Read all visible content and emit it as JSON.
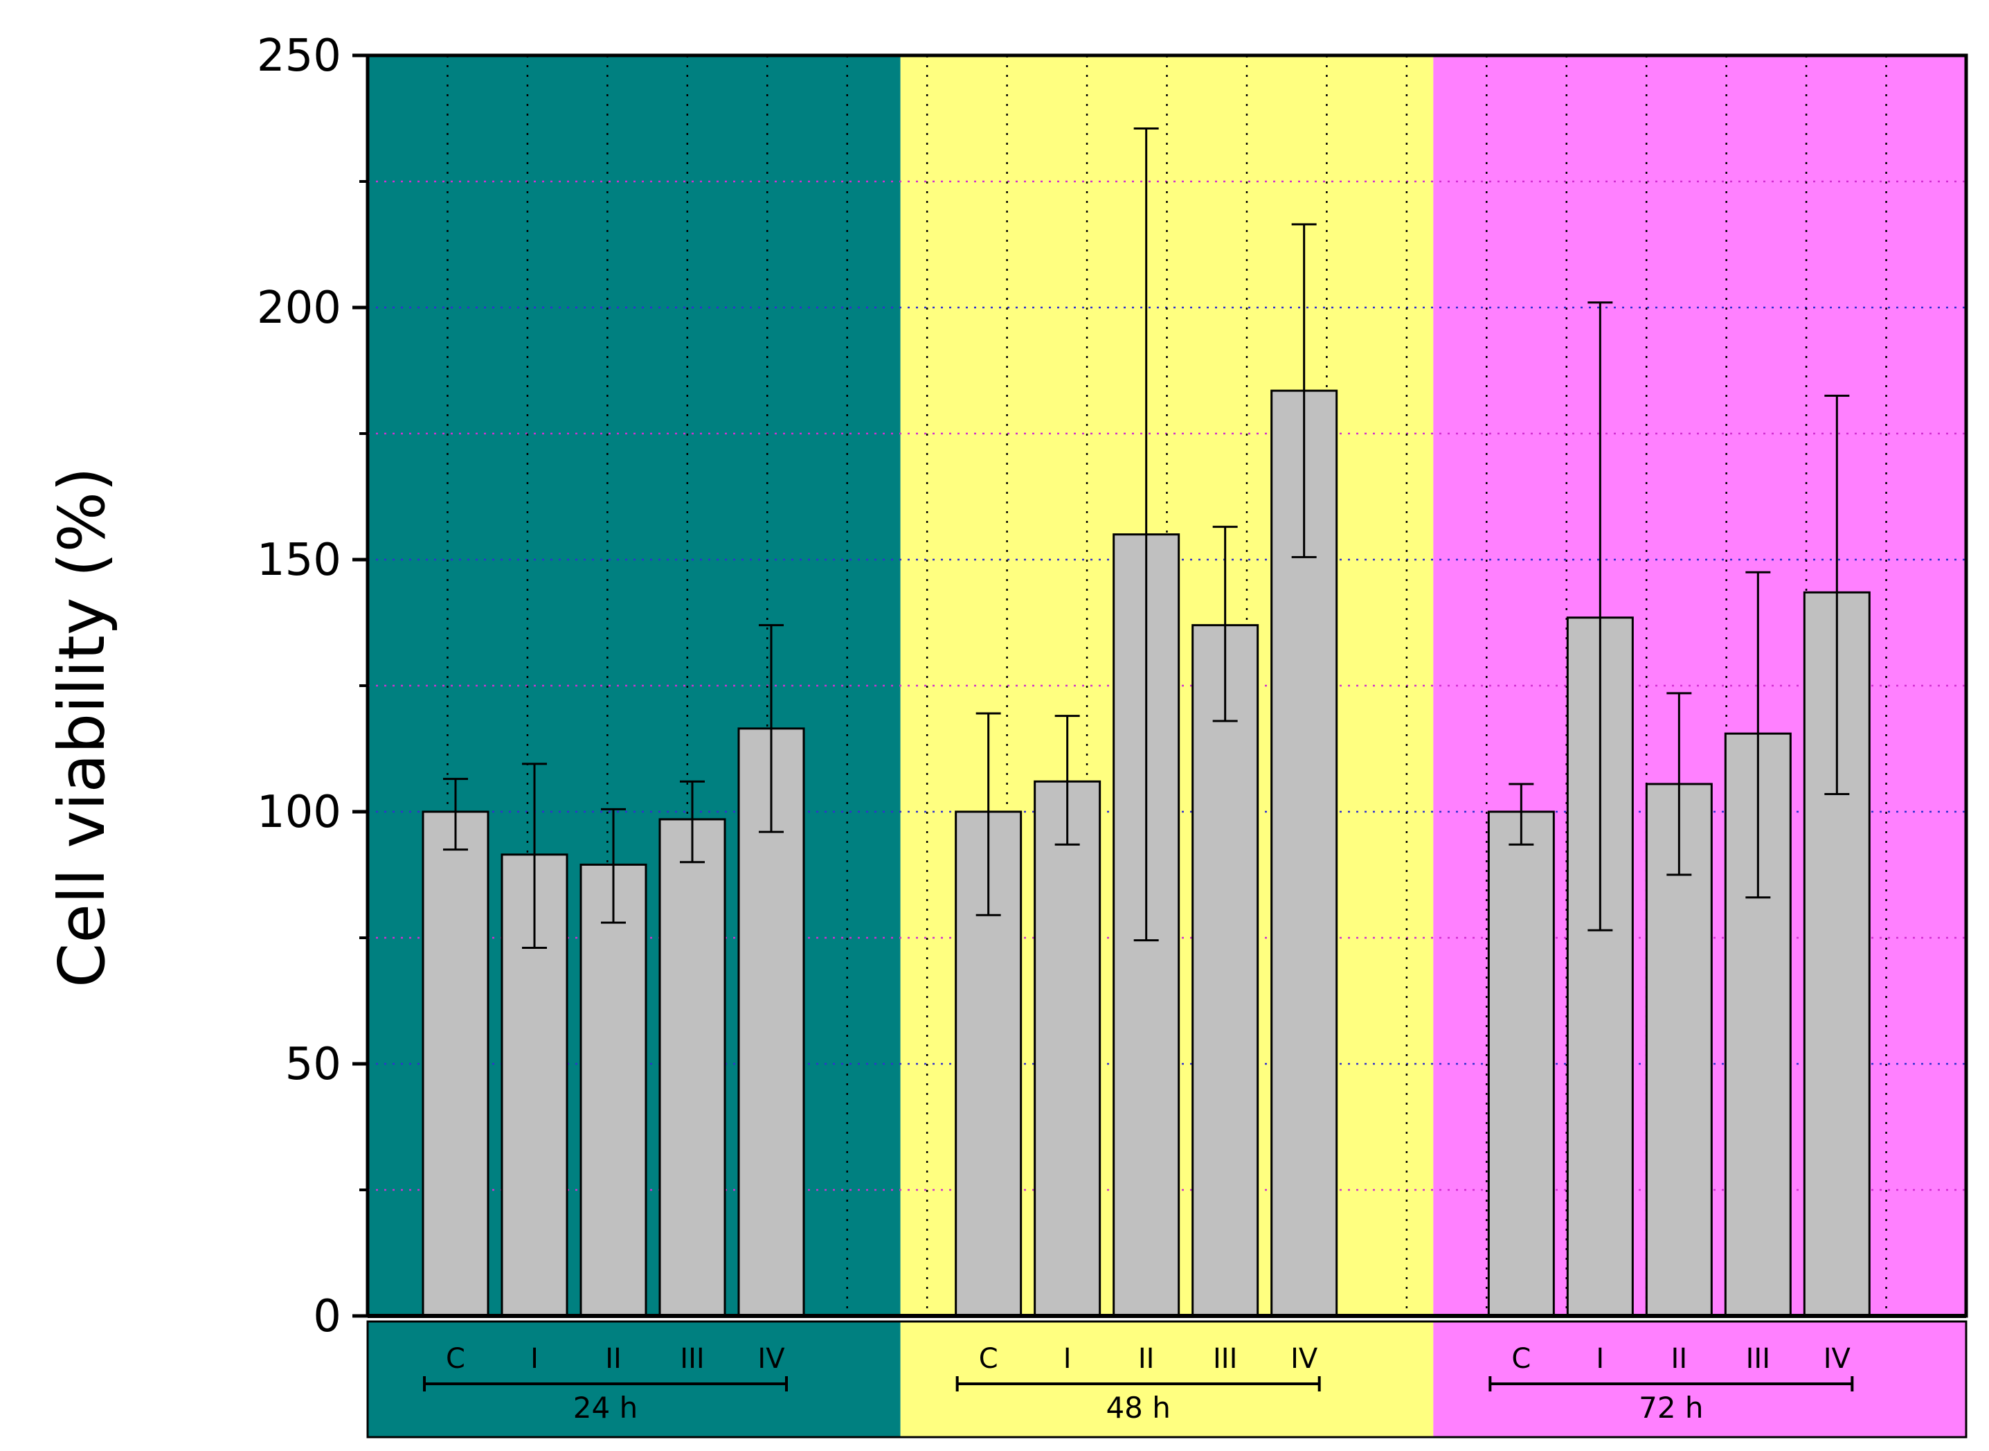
{
  "chart_data": {
    "type": "bar",
    "title": "",
    "xlabel": "",
    "ylabel": "Cell viability (%)",
    "ylim": [
      0,
      250
    ],
    "yticks": [
      0,
      50,
      100,
      150,
      200,
      250
    ],
    "grid": true,
    "groups": [
      {
        "name": "24 h",
        "background": "#008080",
        "categories": [
          "C",
          "I",
          "II",
          "III",
          "IV"
        ],
        "values": [
          100,
          91.5,
          89.5,
          98.5,
          116.5
        ],
        "error_low": [
          92.5,
          73,
          78,
          90,
          96
        ],
        "error_high": [
          106.5,
          109.5,
          100.5,
          106,
          137
        ]
      },
      {
        "name": "48 h",
        "background": "#FFFF80",
        "categories": [
          "C",
          "I",
          "II",
          "III",
          "IV"
        ],
        "values": [
          100,
          106,
          155,
          137,
          183.5
        ],
        "error_low": [
          79.5,
          93.5,
          74.5,
          118,
          150.5
        ],
        "error_high": [
          119.5,
          119,
          235.5,
          156.5,
          216.5
        ]
      },
      {
        "name": "72 h",
        "background": "#FF80FF",
        "categories": [
          "C",
          "I",
          "II",
          "III",
          "IV"
        ],
        "values": [
          100,
          138.5,
          105.5,
          115.5,
          143.5
        ],
        "error_low": [
          93.5,
          76.5,
          87.5,
          83,
          103.5
        ],
        "error_high": [
          105.5,
          201,
          123.5,
          147.5,
          182.5
        ]
      }
    ],
    "bar_color": "#C0C0C0"
  }
}
